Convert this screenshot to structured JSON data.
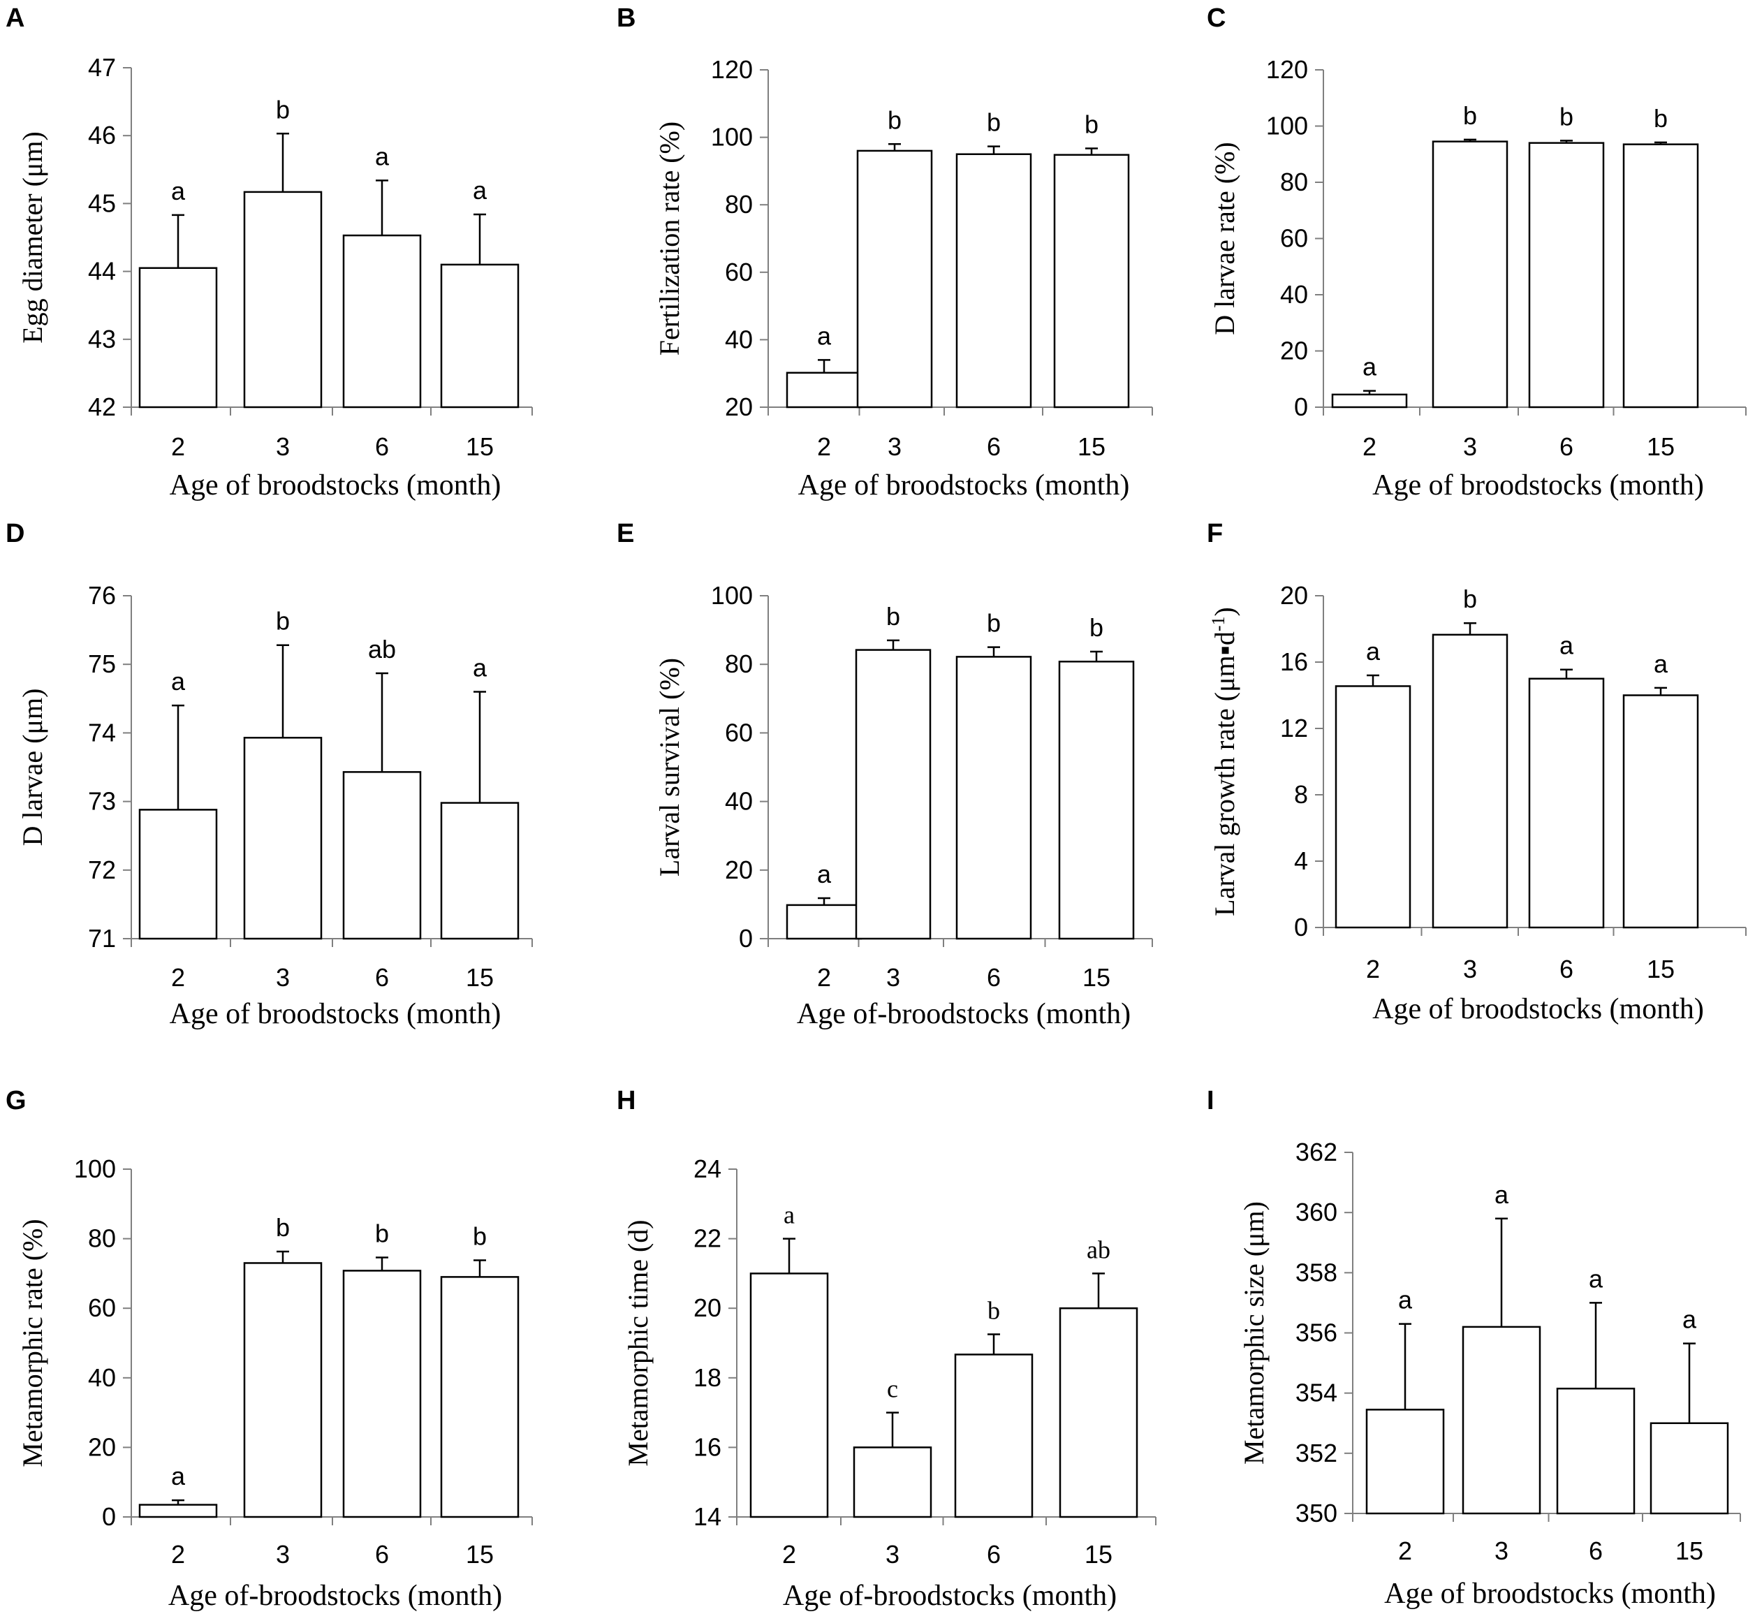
{
  "chart_data": [
    {
      "panel": "A",
      "type": "bar",
      "categories": [
        "2",
        "3",
        "6",
        "15"
      ],
      "values": [
        44.05,
        45.17,
        44.53,
        44.1
      ],
      "errors": [
        0.78,
        0.86,
        0.81,
        0.74
      ],
      "labels": [
        "a",
        "b",
        "a",
        "a"
      ],
      "ylabel": "Egg diameter (μm)",
      "xlabel": "Age of broodstocks (month)",
      "ylim": [
        42,
        47
      ],
      "yticks": [
        42,
        43,
        44,
        45,
        46,
        47
      ]
    },
    {
      "panel": "B",
      "type": "bar",
      "categories": [
        "2",
        "3",
        "6",
        "15"
      ],
      "values": [
        30.2,
        96.0,
        95.0,
        94.8
      ],
      "errors": [
        3.8,
        2.0,
        2.3,
        1.9
      ],
      "labels": [
        "a",
        "b",
        "b",
        "b"
      ],
      "ylabel": "Fertilization rate (%)",
      "xlabel": "Age of broodstocks (month)",
      "ylim": [
        20,
        120
      ],
      "yticks": [
        20,
        40,
        60,
        80,
        100,
        120
      ]
    },
    {
      "panel": "C",
      "type": "bar",
      "categories": [
        "2",
        "3",
        "6",
        "15"
      ],
      "values": [
        4.5,
        94.5,
        94.0,
        93.5
      ],
      "errors": [
        1.3,
        0.7,
        0.8,
        0.7
      ],
      "labels": [
        "a",
        "b",
        "b",
        "b"
      ],
      "ylabel": "D larvae rate (%)",
      "xlabel": "Age of broodstocks (month)",
      "ylim": [
        0,
        120
      ],
      "yticks": [
        0,
        20,
        40,
        60,
        80,
        100,
        120
      ]
    },
    {
      "panel": "D",
      "type": "bar",
      "categories": [
        "2",
        "3",
        "6",
        "15"
      ],
      "values": [
        72.88,
        73.93,
        73.43,
        72.98
      ],
      "errors": [
        1.52,
        1.35,
        1.44,
        1.62
      ],
      "labels": [
        "a",
        "b",
        "ab",
        "a"
      ],
      "ylabel": "D larvae (μm)",
      "xlabel": "Age of broodstocks (month)",
      "ylim": [
        71,
        76
      ],
      "yticks": [
        71,
        72,
        73,
        74,
        75,
        76
      ]
    },
    {
      "panel": "E",
      "type": "bar",
      "categories": [
        "2",
        "3",
        "6",
        "15"
      ],
      "values": [
        9.8,
        84.2,
        82.2,
        80.8
      ],
      "errors": [
        2.0,
        2.8,
        2.8,
        2.9
      ],
      "labels": [
        "a",
        "b",
        "b",
        "b"
      ],
      "ylabel": "Larval survival (%)",
      "xlabel": "Age of-broodstocks (month)",
      "ylim": [
        0,
        100
      ],
      "yticks": [
        0,
        20,
        40,
        60,
        80,
        100
      ]
    },
    {
      "panel": "F",
      "type": "bar",
      "categories": [
        "2",
        "3",
        "6",
        "15"
      ],
      "values": [
        14.55,
        17.65,
        15.0,
        14.0
      ],
      "errors": [
        0.65,
        0.7,
        0.55,
        0.45
      ],
      "labels": [
        "a",
        "b",
        "a",
        "a"
      ],
      "ylabel": "Larval growth rate (μm▪d",
      "ylabel_sup": "-1",
      "ylabel_end": ")",
      "xlabel": "Age of broodstocks (month)",
      "ylim": [
        0,
        20
      ],
      "yticks": [
        0,
        4,
        8,
        12,
        16,
        20
      ]
    },
    {
      "panel": "G",
      "type": "bar",
      "categories": [
        "2",
        "3",
        "6",
        "15"
      ],
      "values": [
        3.5,
        73.0,
        70.8,
        69.0
      ],
      "errors": [
        1.3,
        3.3,
        3.8,
        4.8
      ],
      "labels": [
        "a",
        "b",
        "b",
        "b"
      ],
      "ylabel": "Metamorphic rate (%)",
      "xlabel": "Age of-broodstocks (month)",
      "ylim": [
        0,
        100
      ],
      "yticks": [
        0,
        20,
        40,
        60,
        80,
        100
      ]
    },
    {
      "panel": "H",
      "type": "bar",
      "categories": [
        "2",
        "3",
        "6",
        "15"
      ],
      "values": [
        21.0,
        16.0,
        18.67,
        20.0
      ],
      "errors": [
        1.0,
        1.0,
        0.58,
        1.0
      ],
      "labels": [
        "a",
        "c",
        "b",
        "ab"
      ],
      "ylabel": "Metamorphic time (d)",
      "xlabel": "Age of-broodstocks (month)",
      "ylim": [
        14,
        24
      ],
      "yticks": [
        14,
        16,
        18,
        20,
        22,
        24
      ]
    },
    {
      "panel": "I",
      "type": "bar",
      "categories": [
        "2",
        "3",
        "6",
        "15"
      ],
      "values": [
        353.45,
        356.2,
        354.15,
        353.0
      ],
      "errors": [
        2.85,
        3.6,
        2.85,
        2.65
      ],
      "labels": [
        "a",
        "a",
        "a",
        "a"
      ],
      "ylabel": "Metamorphic size (μm)",
      "xlabel": "Age of broodstocks (month)",
      "ylim": [
        350,
        362
      ],
      "yticks": [
        350,
        352,
        354,
        356,
        358,
        360,
        362
      ]
    }
  ],
  "colors": {
    "bar_fill": "#ffffff",
    "stroke": "#000000",
    "axis": "#7f7f7f"
  }
}
